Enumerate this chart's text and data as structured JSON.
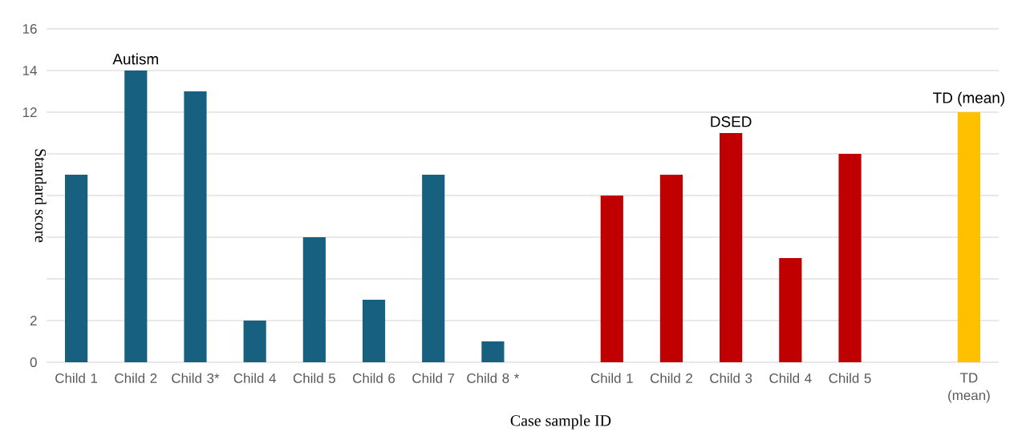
{
  "chart_data": {
    "type": "bar",
    "xlabel": "Case sample ID",
    "ylabel": "Standard score",
    "categories": [
      "Child 1",
      "Child 2",
      "Child 3*",
      "Child 4",
      "Child 5",
      "Child 6",
      "Child 7",
      "Child 8 *",
      null,
      "Child 1",
      "Child 2",
      "Child 3",
      "Child 4",
      "Child 5",
      null,
      "TD (mean)"
    ],
    "series": [
      {
        "name": "Autism",
        "color": "#17607f",
        "values": [
          9,
          14,
          13,
          2,
          6,
          3,
          9,
          1,
          null,
          null,
          null,
          null,
          null,
          null,
          null,
          null
        ]
      },
      {
        "name": "DSED",
        "color": "#c00000",
        "values": [
          null,
          null,
          null,
          null,
          null,
          null,
          null,
          null,
          null,
          8,
          9,
          11,
          5,
          10,
          null,
          null
        ]
      },
      {
        "name": "TD (mean)",
        "color": "#ffc000",
        "values": [
          null,
          null,
          null,
          null,
          null,
          null,
          null,
          null,
          null,
          null,
          null,
          null,
          null,
          null,
          null,
          12
        ]
      }
    ],
    "ylim": [
      0,
      16
    ],
    "yticks": [
      0,
      2,
      {
        "value": 4,
        "label": null
      },
      {
        "value": 6,
        "label": null
      },
      {
        "value": 8,
        "label": null
      },
      {
        "value": 10,
        "label": null
      },
      12,
      14,
      16
    ],
    "grid": "y"
  }
}
